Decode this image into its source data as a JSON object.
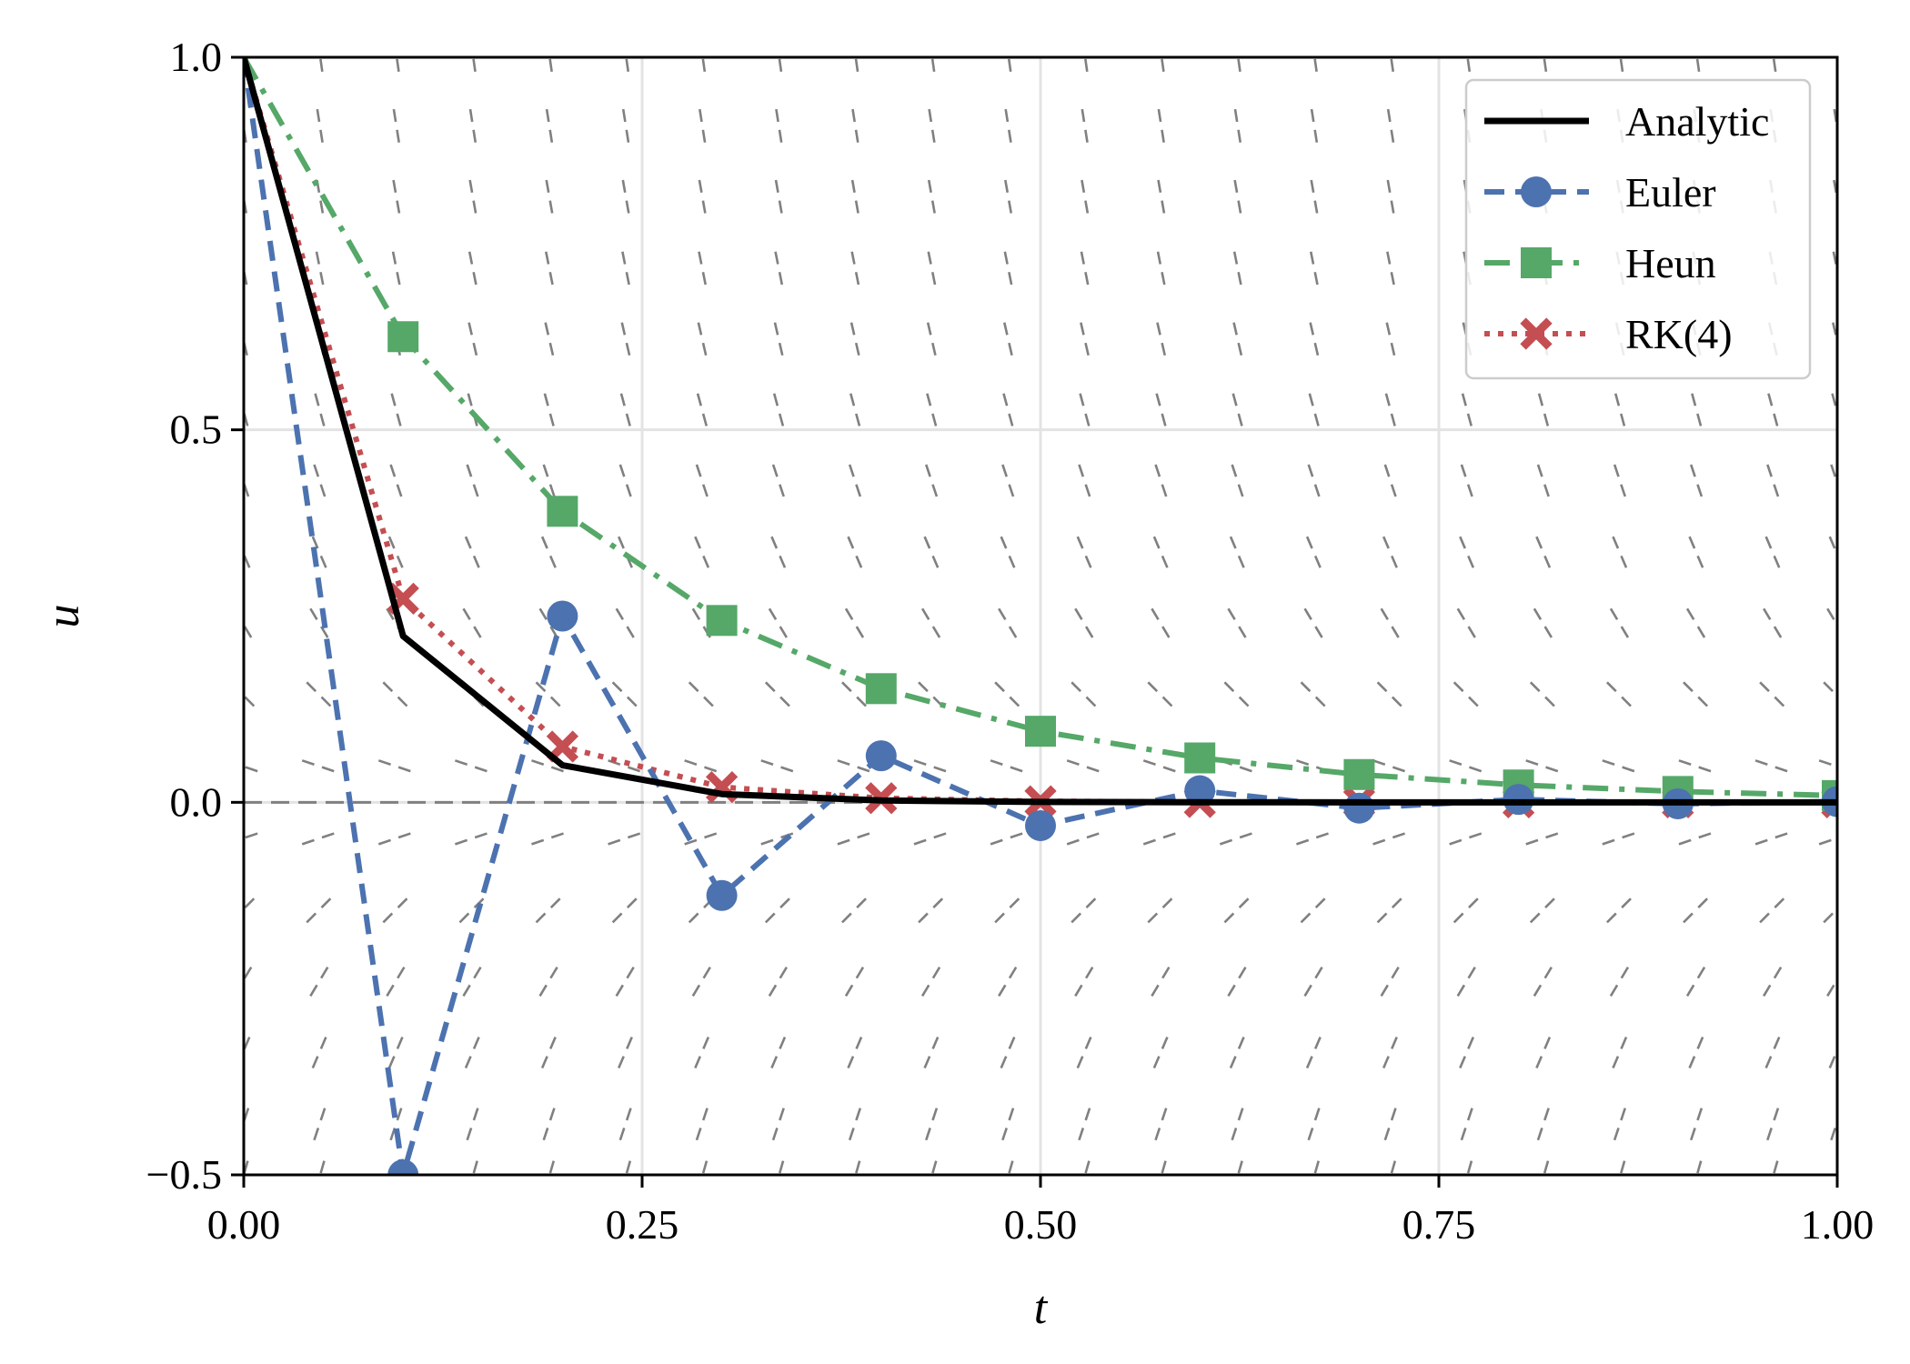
{
  "chart_data": {
    "type": "line",
    "xlabel": "t",
    "ylabel": "u",
    "xlim": [
      0,
      1
    ],
    "ylim": [
      -0.5,
      1.0
    ],
    "xticks": [
      "0.00",
      "0.25",
      "0.50",
      "0.75",
      "1.00"
    ],
    "xtick_values": [
      0,
      0.25,
      0.5,
      0.75,
      1.0
    ],
    "yticks": [
      "−0.5",
      "0.0",
      "0.5",
      "1.0"
    ],
    "ytick_values": [
      -0.5,
      0.0,
      0.5,
      1.0
    ],
    "grid": true,
    "zero_line": true,
    "slope_field": {
      "equation_rate": -15,
      "t_values": [
        0.0,
        0.048,
        0.096,
        0.144,
        0.192,
        0.24,
        0.288,
        0.336,
        0.384,
        0.432,
        0.48,
        0.528,
        0.576,
        0.624,
        0.672,
        0.72,
        0.768,
        0.816,
        0.864,
        0.912,
        0.96,
        1.0
      ],
      "u_values": [
        1.0,
        0.905,
        0.81,
        0.714,
        0.619,
        0.524,
        0.429,
        0.333,
        0.238,
        0.143,
        0.048,
        -0.048,
        -0.143,
        -0.238,
        -0.333,
        -0.429,
        -0.5
      ],
      "color": "#808080"
    },
    "legend_position": "top-right",
    "series": [
      {
        "name": "Analytic",
        "x": [
          0,
          0.1,
          0.2,
          0.3,
          0.4,
          0.5,
          0.6,
          0.7,
          0.8,
          0.9,
          1.0
        ],
        "y": [
          1.0,
          0.2231,
          0.0498,
          0.0111,
          0.0025,
          0.0006,
          0.0001,
          0.0,
          0.0,
          0.0,
          0.0
        ],
        "color": "#000000",
        "style": "solid",
        "marker": "none"
      },
      {
        "name": "Euler",
        "x": [
          0,
          0.1,
          0.2,
          0.3,
          0.4,
          0.5,
          0.6,
          0.7,
          0.8,
          0.9,
          1.0
        ],
        "y": [
          1.0,
          -0.5,
          0.25,
          -0.125,
          0.0625,
          -0.0313,
          0.0156,
          -0.0078,
          0.0039,
          -0.002,
          0.001
        ],
        "color": "#4c72b0",
        "style": "dashed",
        "marker": "circle"
      },
      {
        "name": "Heun",
        "x": [
          0,
          0.1,
          0.2,
          0.3,
          0.4,
          0.5,
          0.6,
          0.7,
          0.8,
          0.9,
          1.0
        ],
        "y": [
          1.0,
          0.625,
          0.3906,
          0.2441,
          0.1526,
          0.0954,
          0.0596,
          0.0373,
          0.0233,
          0.0146,
          0.0091
        ],
        "color": "#55a868",
        "style": "dashdot",
        "marker": "square"
      },
      {
        "name": "RK(4)",
        "x": [
          0,
          0.1,
          0.2,
          0.3,
          0.4,
          0.5,
          0.6,
          0.7,
          0.8,
          0.9,
          1.0
        ],
        "y": [
          1.0,
          0.2734,
          0.0748,
          0.0204,
          0.0056,
          0.0015,
          0.0004,
          0.0001,
          0.0,
          0.0,
          0.0
        ],
        "color": "#c44e52",
        "style": "dotted",
        "marker": "x"
      }
    ]
  }
}
